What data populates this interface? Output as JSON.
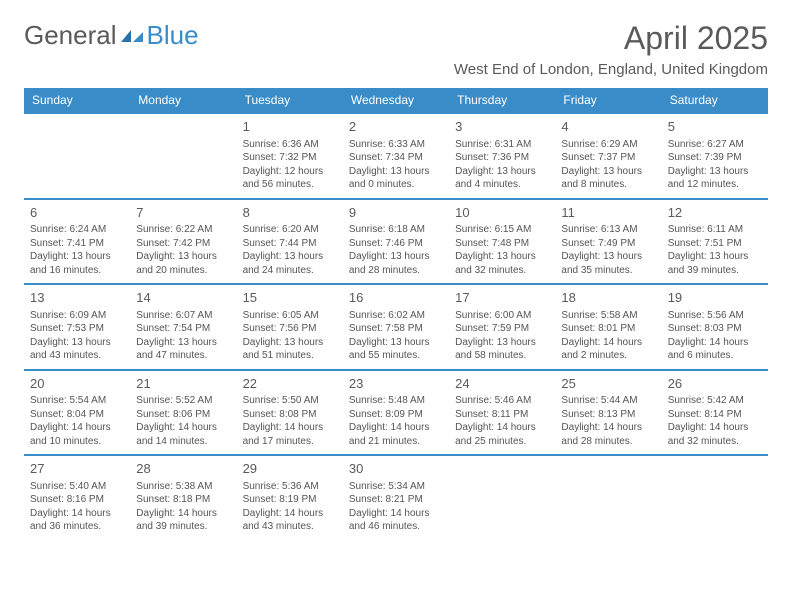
{
  "logo": {
    "general": "General",
    "blue": "Blue"
  },
  "title": "April 2025",
  "location": "West End of London, England, United Kingdom",
  "colors": {
    "header_bg": "#3a8cc8",
    "header_text": "#ffffff",
    "border": "#3a8cc8",
    "text": "#555555",
    "daynum": "#5a5a5a",
    "title": "#5a5a5a"
  },
  "dayheaders": [
    "Sunday",
    "Monday",
    "Tuesday",
    "Wednesday",
    "Thursday",
    "Friday",
    "Saturday"
  ],
  "weeks": [
    [
      null,
      null,
      {
        "num": "1",
        "sunrise": "Sunrise: 6:36 AM",
        "sunset": "Sunset: 7:32 PM",
        "daylight1": "Daylight: 12 hours",
        "daylight2": "and 56 minutes."
      },
      {
        "num": "2",
        "sunrise": "Sunrise: 6:33 AM",
        "sunset": "Sunset: 7:34 PM",
        "daylight1": "Daylight: 13 hours",
        "daylight2": "and 0 minutes."
      },
      {
        "num": "3",
        "sunrise": "Sunrise: 6:31 AM",
        "sunset": "Sunset: 7:36 PM",
        "daylight1": "Daylight: 13 hours",
        "daylight2": "and 4 minutes."
      },
      {
        "num": "4",
        "sunrise": "Sunrise: 6:29 AM",
        "sunset": "Sunset: 7:37 PM",
        "daylight1": "Daylight: 13 hours",
        "daylight2": "and 8 minutes."
      },
      {
        "num": "5",
        "sunrise": "Sunrise: 6:27 AM",
        "sunset": "Sunset: 7:39 PM",
        "daylight1": "Daylight: 13 hours",
        "daylight2": "and 12 minutes."
      }
    ],
    [
      {
        "num": "6",
        "sunrise": "Sunrise: 6:24 AM",
        "sunset": "Sunset: 7:41 PM",
        "daylight1": "Daylight: 13 hours",
        "daylight2": "and 16 minutes."
      },
      {
        "num": "7",
        "sunrise": "Sunrise: 6:22 AM",
        "sunset": "Sunset: 7:42 PM",
        "daylight1": "Daylight: 13 hours",
        "daylight2": "and 20 minutes."
      },
      {
        "num": "8",
        "sunrise": "Sunrise: 6:20 AM",
        "sunset": "Sunset: 7:44 PM",
        "daylight1": "Daylight: 13 hours",
        "daylight2": "and 24 minutes."
      },
      {
        "num": "9",
        "sunrise": "Sunrise: 6:18 AM",
        "sunset": "Sunset: 7:46 PM",
        "daylight1": "Daylight: 13 hours",
        "daylight2": "and 28 minutes."
      },
      {
        "num": "10",
        "sunrise": "Sunrise: 6:15 AM",
        "sunset": "Sunset: 7:48 PM",
        "daylight1": "Daylight: 13 hours",
        "daylight2": "and 32 minutes."
      },
      {
        "num": "11",
        "sunrise": "Sunrise: 6:13 AM",
        "sunset": "Sunset: 7:49 PM",
        "daylight1": "Daylight: 13 hours",
        "daylight2": "and 35 minutes."
      },
      {
        "num": "12",
        "sunrise": "Sunrise: 6:11 AM",
        "sunset": "Sunset: 7:51 PM",
        "daylight1": "Daylight: 13 hours",
        "daylight2": "and 39 minutes."
      }
    ],
    [
      {
        "num": "13",
        "sunrise": "Sunrise: 6:09 AM",
        "sunset": "Sunset: 7:53 PM",
        "daylight1": "Daylight: 13 hours",
        "daylight2": "and 43 minutes."
      },
      {
        "num": "14",
        "sunrise": "Sunrise: 6:07 AM",
        "sunset": "Sunset: 7:54 PM",
        "daylight1": "Daylight: 13 hours",
        "daylight2": "and 47 minutes."
      },
      {
        "num": "15",
        "sunrise": "Sunrise: 6:05 AM",
        "sunset": "Sunset: 7:56 PM",
        "daylight1": "Daylight: 13 hours",
        "daylight2": "and 51 minutes."
      },
      {
        "num": "16",
        "sunrise": "Sunrise: 6:02 AM",
        "sunset": "Sunset: 7:58 PM",
        "daylight1": "Daylight: 13 hours",
        "daylight2": "and 55 minutes."
      },
      {
        "num": "17",
        "sunrise": "Sunrise: 6:00 AM",
        "sunset": "Sunset: 7:59 PM",
        "daylight1": "Daylight: 13 hours",
        "daylight2": "and 58 minutes."
      },
      {
        "num": "18",
        "sunrise": "Sunrise: 5:58 AM",
        "sunset": "Sunset: 8:01 PM",
        "daylight1": "Daylight: 14 hours",
        "daylight2": "and 2 minutes."
      },
      {
        "num": "19",
        "sunrise": "Sunrise: 5:56 AM",
        "sunset": "Sunset: 8:03 PM",
        "daylight1": "Daylight: 14 hours",
        "daylight2": "and 6 minutes."
      }
    ],
    [
      {
        "num": "20",
        "sunrise": "Sunrise: 5:54 AM",
        "sunset": "Sunset: 8:04 PM",
        "daylight1": "Daylight: 14 hours",
        "daylight2": "and 10 minutes."
      },
      {
        "num": "21",
        "sunrise": "Sunrise: 5:52 AM",
        "sunset": "Sunset: 8:06 PM",
        "daylight1": "Daylight: 14 hours",
        "daylight2": "and 14 minutes."
      },
      {
        "num": "22",
        "sunrise": "Sunrise: 5:50 AM",
        "sunset": "Sunset: 8:08 PM",
        "daylight1": "Daylight: 14 hours",
        "daylight2": "and 17 minutes."
      },
      {
        "num": "23",
        "sunrise": "Sunrise: 5:48 AM",
        "sunset": "Sunset: 8:09 PM",
        "daylight1": "Daylight: 14 hours",
        "daylight2": "and 21 minutes."
      },
      {
        "num": "24",
        "sunrise": "Sunrise: 5:46 AM",
        "sunset": "Sunset: 8:11 PM",
        "daylight1": "Daylight: 14 hours",
        "daylight2": "and 25 minutes."
      },
      {
        "num": "25",
        "sunrise": "Sunrise: 5:44 AM",
        "sunset": "Sunset: 8:13 PM",
        "daylight1": "Daylight: 14 hours",
        "daylight2": "and 28 minutes."
      },
      {
        "num": "26",
        "sunrise": "Sunrise: 5:42 AM",
        "sunset": "Sunset: 8:14 PM",
        "daylight1": "Daylight: 14 hours",
        "daylight2": "and 32 minutes."
      }
    ],
    [
      {
        "num": "27",
        "sunrise": "Sunrise: 5:40 AM",
        "sunset": "Sunset: 8:16 PM",
        "daylight1": "Daylight: 14 hours",
        "daylight2": "and 36 minutes."
      },
      {
        "num": "28",
        "sunrise": "Sunrise: 5:38 AM",
        "sunset": "Sunset: 8:18 PM",
        "daylight1": "Daylight: 14 hours",
        "daylight2": "and 39 minutes."
      },
      {
        "num": "29",
        "sunrise": "Sunrise: 5:36 AM",
        "sunset": "Sunset: 8:19 PM",
        "daylight1": "Daylight: 14 hours",
        "daylight2": "and 43 minutes."
      },
      {
        "num": "30",
        "sunrise": "Sunrise: 5:34 AM",
        "sunset": "Sunset: 8:21 PM",
        "daylight1": "Daylight: 14 hours",
        "daylight2": "and 46 minutes."
      },
      null,
      null,
      null
    ]
  ]
}
